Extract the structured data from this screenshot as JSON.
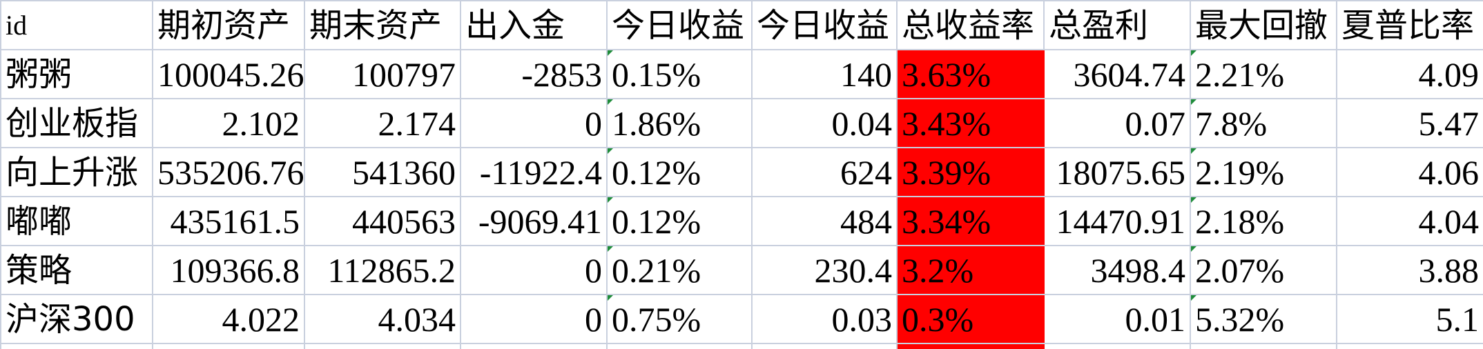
{
  "sheet": {
    "headers": [
      "id",
      "期初资产",
      "期末资产",
      "出入金",
      "今日收益",
      "今日收益",
      "总收益率",
      "总盈利",
      "最大回撤",
      "夏普比率",
      ""
    ],
    "rows": [
      {
        "id": "粥粥",
        "c1": "100045.26",
        "c2": "100797",
        "c3": "-2853",
        "c4": "0.15%",
        "c5": "140",
        "c6": "3.63%",
        "c7": "3604.74",
        "c8": "2.21%",
        "c9": "4.09"
      },
      {
        "id": "创业板指",
        "c1": "2.102",
        "c2": "2.174",
        "c3": "0",
        "c4": "1.86%",
        "c5": "0.04",
        "c6": "3.43%",
        "c7": "0.07",
        "c8": "7.8%",
        "c9": "5.47"
      },
      {
        "id": "向上升涨",
        "c1": "535206.76",
        "c2": "541360",
        "c3": "-11922.4",
        "c4": "0.12%",
        "c5": "624",
        "c6": "3.39%",
        "c7": "18075.65",
        "c8": "2.19%",
        "c9": "4.06"
      },
      {
        "id": "嘟嘟",
        "c1": "435161.5",
        "c2": "440563",
        "c3": "-9069.41",
        "c4": "0.12%",
        "c5": "484",
        "c6": "3.34%",
        "c7": "14470.91",
        "c8": "2.18%",
        "c9": "4.04"
      },
      {
        "id": "策略",
        "c1": "109366.8",
        "c2": "112865.2",
        "c3": "0",
        "c4": "0.21%",
        "c5": "230.4",
        "c6": "3.2%",
        "c7": "3498.4",
        "c8": "2.07%",
        "c9": "3.88"
      },
      {
        "id": "沪深300",
        "c1": "4.022",
        "c2": "4.034",
        "c3": "0",
        "c4": "0.75%",
        "c5": "0.03",
        "c6": "0.3%",
        "c7": "0.01",
        "c8": "5.32%",
        "c9": "5.1"
      }
    ]
  },
  "colors": {
    "highlight": "#ff0000",
    "gridline": "#c9d0de",
    "flag": "#1e8c3a"
  }
}
